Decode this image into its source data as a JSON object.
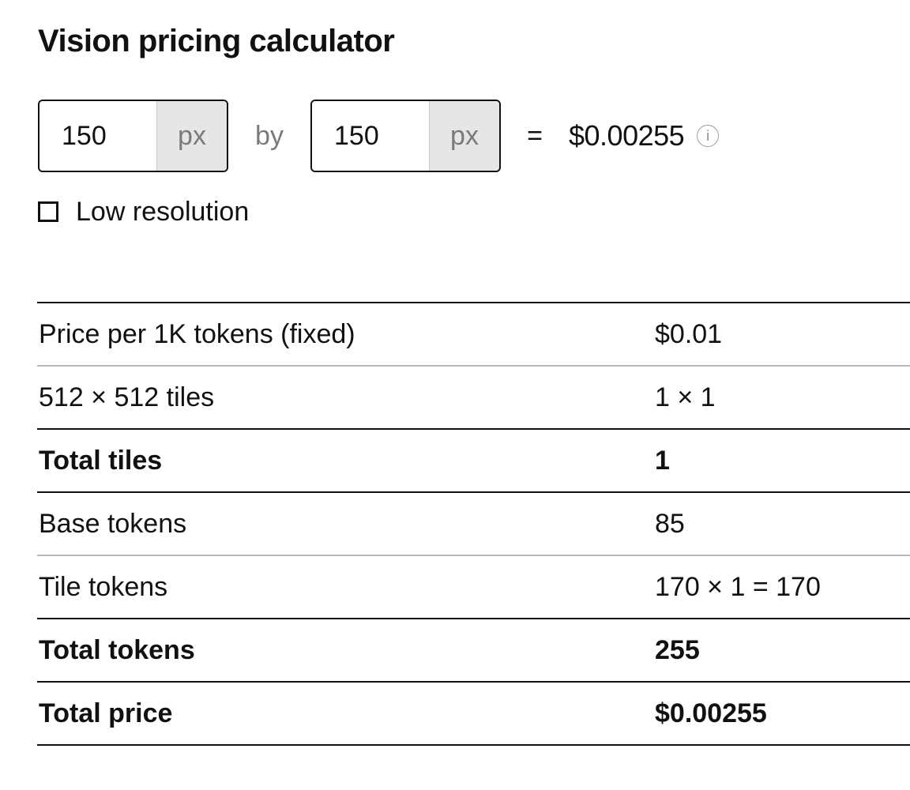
{
  "title": "Vision pricing calculator",
  "calculator": {
    "width_value": "150",
    "width_unit": "px",
    "by_label": "by",
    "height_value": "150",
    "height_unit": "px",
    "equals": "=",
    "result_price": "$0.00255",
    "info_icon": "i"
  },
  "low_resolution": {
    "label": "Low resolution",
    "checked": false
  },
  "table": {
    "rows": [
      {
        "label": "Price per 1K tokens (fixed)",
        "value": "$0.01",
        "bold": false
      },
      {
        "label": "512 × 512 tiles",
        "value": "1 × 1",
        "bold": false
      },
      {
        "label": "Total tiles",
        "value": "1",
        "bold": true
      },
      {
        "label": "Base tokens",
        "value": "85",
        "bold": false
      },
      {
        "label": "Tile tokens",
        "value": "170 × 1 = 170",
        "bold": false
      },
      {
        "label": "Total tokens",
        "value": "255",
        "bold": true
      },
      {
        "label": "Total price",
        "value": "$0.00255",
        "bold": true
      }
    ]
  },
  "colors": {
    "text": "#111111",
    "muted": "#7a7a7a",
    "unit_background": "#e6e6e6",
    "divider_light": "#b8b8b8",
    "divider_dark": "#111111"
  }
}
